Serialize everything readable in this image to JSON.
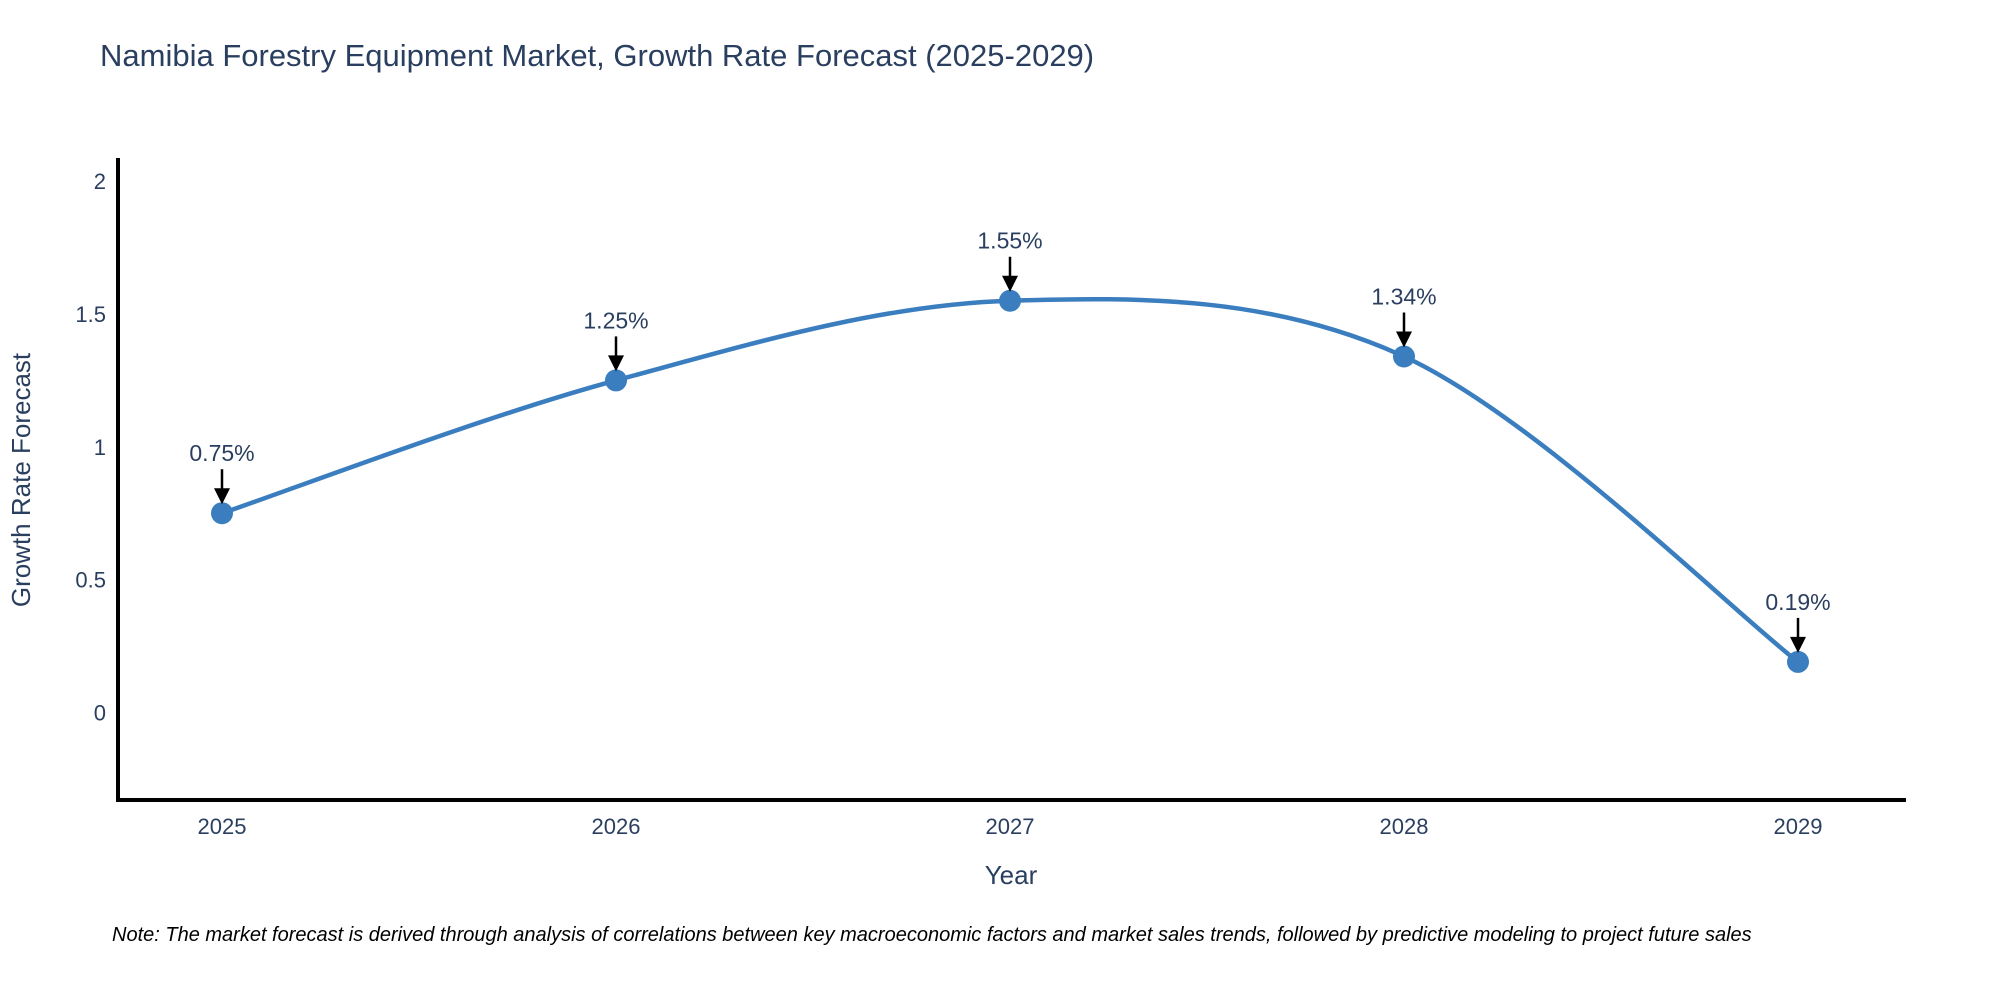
{
  "title": "Namibia Forestry Equipment Market, Growth Rate Forecast (2025-2029)",
  "note": "Note: The market forecast is derived through analysis of correlations between key macroeconomic factors and market sales trends, followed by predictive modeling to project future sales",
  "colors": {
    "line": "#3a7ebf",
    "marker": "#3a7ebf",
    "arrow": "#000000",
    "axis_line": "#000000",
    "text": "#2a3f5f",
    "note_text": "#000000",
    "background": "#ffffff"
  },
  "chart_data": {
    "type": "line",
    "title": "Namibia Forestry Equipment Market, Growth Rate Forecast (2025-2029)",
    "xlabel": "Year",
    "ylabel": "Growth Rate Forecast",
    "x": [
      2025,
      2026,
      2027,
      2028,
      2029
    ],
    "values": [
      0.75,
      1.25,
      1.55,
      1.34,
      0.19
    ],
    "point_labels": [
      "0.75%",
      "1.25%",
      "1.55%",
      "1.34%",
      "0.19%"
    ],
    "xticks": [
      "2025",
      "2026",
      "2027",
      "2028",
      "2029"
    ],
    "yticks": [
      0,
      0.5,
      1,
      1.5,
      2
    ],
    "ylim": [
      -0.33,
      2.08
    ],
    "line_shape": "spline",
    "grid": false,
    "legend_position": "none",
    "units": "percent"
  }
}
